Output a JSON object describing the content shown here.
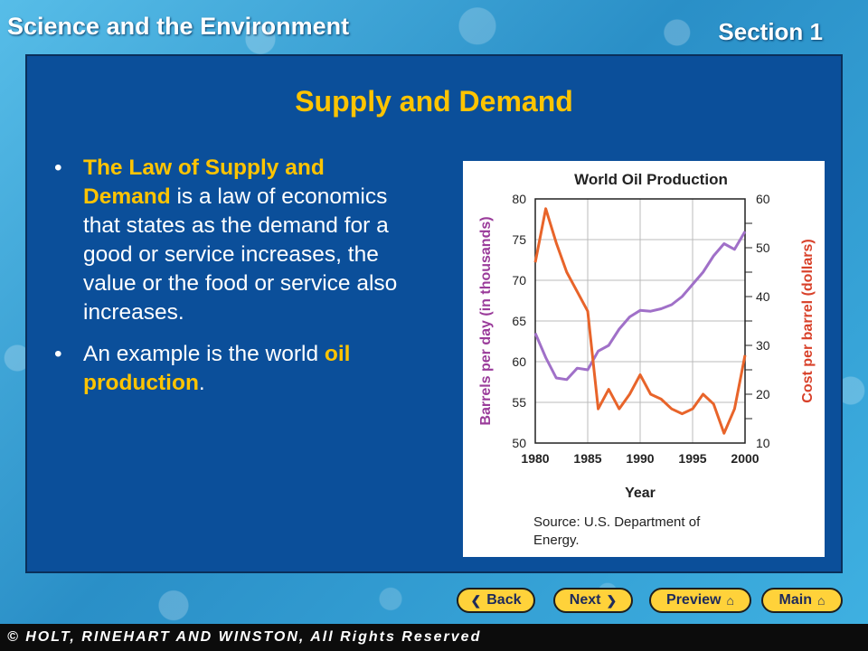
{
  "header": {
    "left_title": "Science and the Environment",
    "section": "Section 1"
  },
  "slide": {
    "title": "Supply and Demand",
    "bullet1": {
      "highlight": "The Law of Supply and Demand",
      "text": " is a law of economics that states as the demand for a good or service increases, the value or the food or service also increases."
    },
    "bullet2": {
      "prefix": "An example is the world ",
      "highlight": "oil production",
      "suffix": "."
    }
  },
  "chart_data": {
    "type": "line",
    "title": "World Oil Production",
    "xlabel": "Year",
    "ylabel_left": "Barrels per day (in thousands)",
    "ylabel_right": "Cost per barrel (dollars)",
    "xlim": [
      1980,
      2000
    ],
    "ylim_left": [
      50,
      80
    ],
    "ylim_right": [
      10,
      60
    ],
    "x_ticks": [
      "1980",
      "1985",
      "1990",
      "1995",
      "2000"
    ],
    "y_ticks_left": [
      "80",
      "75",
      "70",
      "65",
      "60",
      "55",
      "50"
    ],
    "y_ticks_right": [
      "60",
      "50",
      "40",
      "30",
      "20",
      "10"
    ],
    "source": "Source: U.S. Department of Energy.",
    "series": [
      {
        "axis": "left",
        "color": "#a070c8",
        "x": [
          1980,
          1981,
          1982,
          1983,
          1984,
          1985,
          1986,
          1987,
          1988,
          1989,
          1990,
          1991,
          1992,
          1993,
          1994,
          1995,
          1996,
          1997,
          1998,
          1999,
          2000
        ],
        "y": [
          63.5,
          60.5,
          58,
          57.8,
          59.2,
          59,
          61.3,
          62,
          64,
          65.5,
          66.3,
          66.2,
          66.5,
          67,
          68,
          69.5,
          71,
          73,
          74.5,
          73.8,
          76
        ]
      },
      {
        "axis": "right",
        "color": "#e8642a",
        "x": [
          1980,
          1981,
          1982,
          1983,
          1984,
          1985,
          1986,
          1987,
          1988,
          1989,
          1990,
          1991,
          1992,
          1993,
          1994,
          1995,
          1996,
          1997,
          1998,
          1999,
          2000
        ],
        "y": [
          47,
          58,
          51,
          45,
          41,
          37,
          17,
          21,
          17,
          20,
          24,
          20,
          19,
          17,
          16,
          17,
          20,
          18,
          12,
          17,
          28
        ]
      }
    ]
  },
  "nav": {
    "back": "Back",
    "next": "Next",
    "preview": "Preview",
    "main": "Main"
  },
  "footer": {
    "copyright": "© HOLT, RINEHART AND WINSTON, All Rights Reserved"
  }
}
